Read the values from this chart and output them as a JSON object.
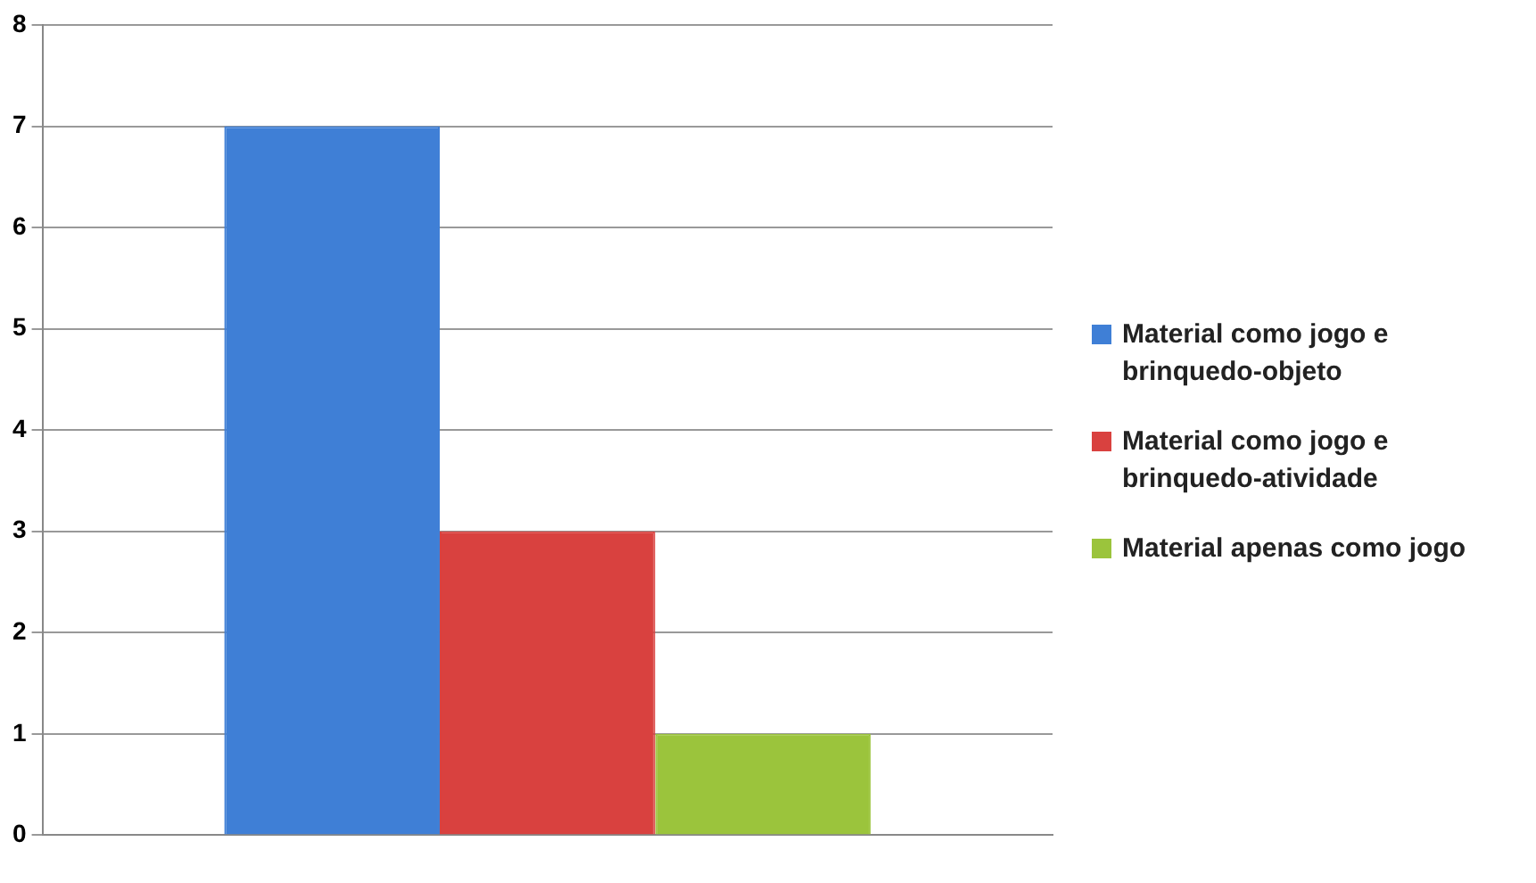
{
  "chart_data": {
    "type": "bar",
    "categories": [
      null
    ],
    "series": [
      {
        "name": "Material como jogo e brinquedo-objeto",
        "color": "#3f7fd6",
        "values": [
          7
        ]
      },
      {
        "name": "Material como jogo e brinquedo-atividade",
        "color": "#d9413f",
        "values": [
          3
        ]
      },
      {
        "name": "Material apenas como jogo",
        "color": "#9bc43c",
        "values": [
          1
        ]
      }
    ],
    "ylim": [
      0,
      8
    ],
    "yticks": [
      0,
      1,
      2,
      3,
      4,
      5,
      6,
      7,
      8
    ],
    "grid": "y",
    "legend": "right"
  }
}
